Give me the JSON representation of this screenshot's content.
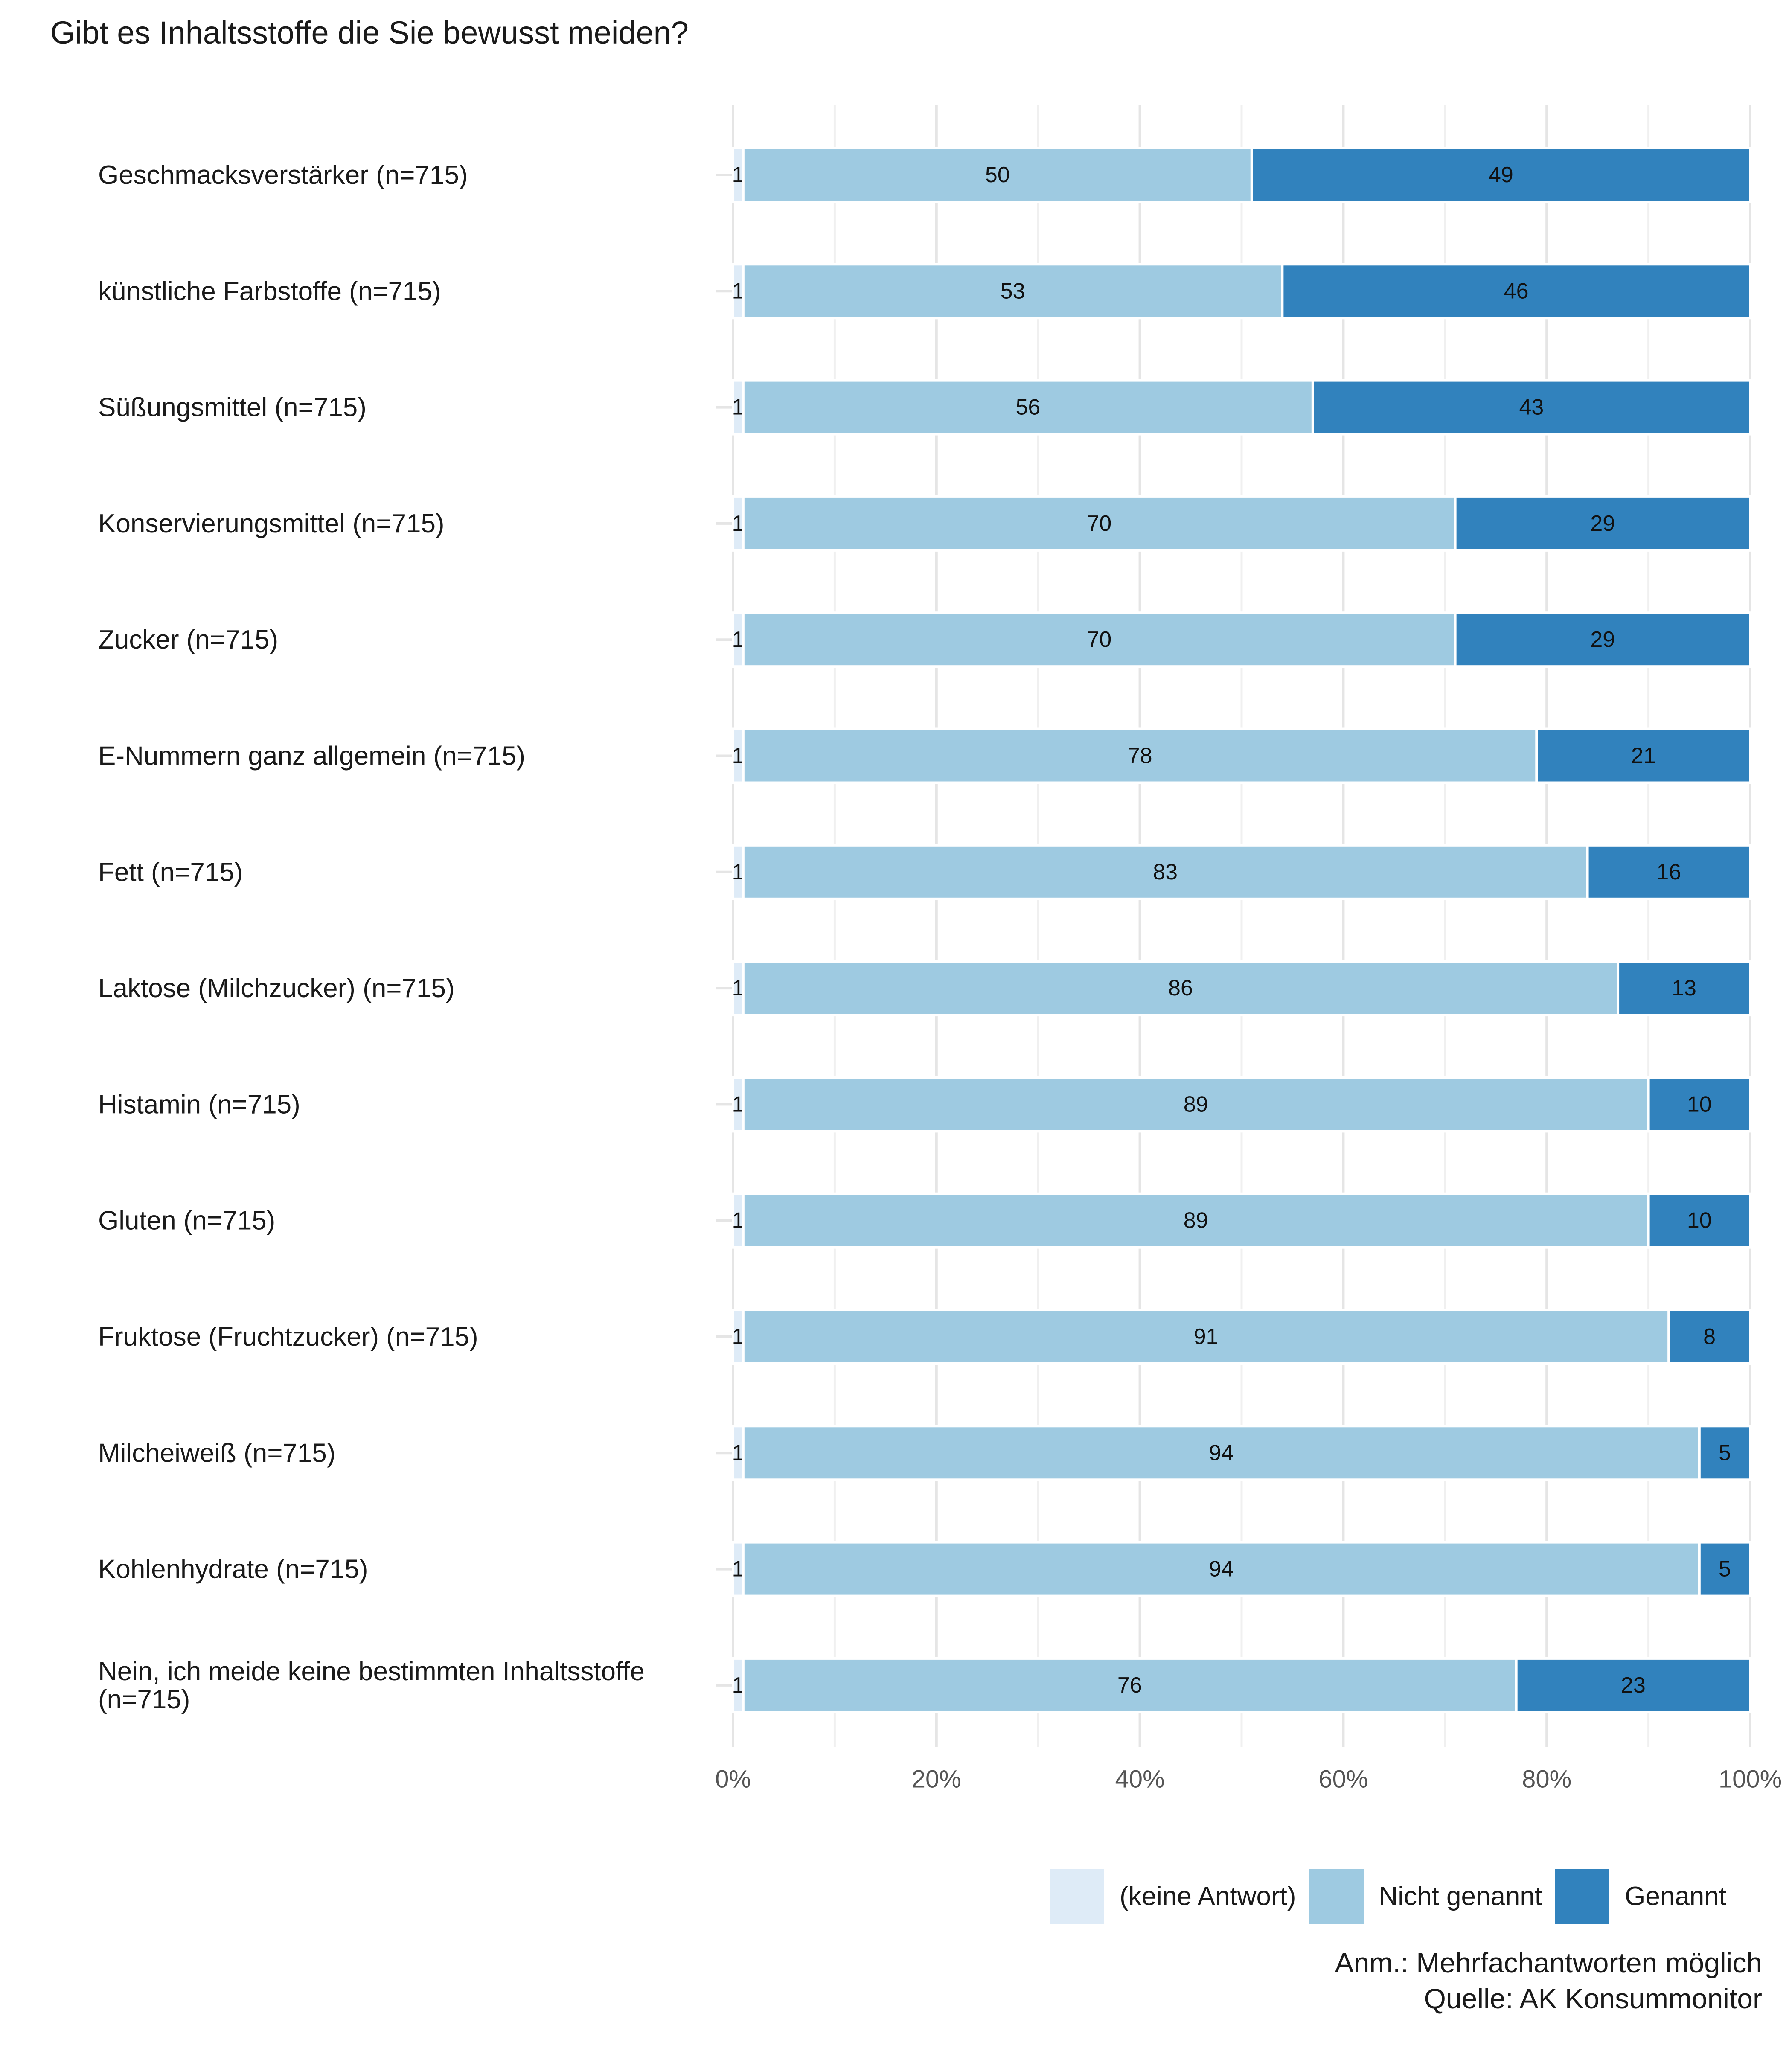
{
  "chart_data": {
    "type": "bar",
    "orientation": "horizontal",
    "stacked": true,
    "percent": true,
    "title": "Gibt es Inhaltsstoffe die Sie bewusst meiden?",
    "categories": [
      "Geschmacksverstärker (n=715)",
      "künstliche Farbstoffe (n=715)",
      "Süßungsmittel (n=715)",
      "Konservierungsmittel (n=715)",
      "Zucker (n=715)",
      "E-Nummern ganz allgemein (n=715)",
      "Fett (n=715)",
      "Laktose (Milchzucker) (n=715)",
      "Histamin (n=715)",
      "Gluten (n=715)",
      "Fruktose (Fruchtzucker) (n=715)",
      "Milcheiweiß (n=715)",
      "Kohlenhydrate (n=715)",
      "Nein, ich meide keine bestimmten Inhaltsstoffe (n=715)"
    ],
    "series": [
      {
        "name": "(keine Antwort)",
        "color": "#deebf7",
        "values": [
          1,
          1,
          1,
          1,
          1,
          1,
          1,
          1,
          1,
          1,
          1,
          1,
          1,
          1
        ]
      },
      {
        "name": "Nicht genannt",
        "color": "#9ecae1",
        "values": [
          50,
          53,
          56,
          70,
          70,
          78,
          83,
          86,
          89,
          89,
          91,
          94,
          94,
          76
        ]
      },
      {
        "name": "Genannt",
        "color": "#3182bd",
        "values": [
          49,
          46,
          43,
          29,
          29,
          21,
          16,
          13,
          10,
          10,
          8,
          5,
          5,
          23
        ]
      }
    ],
    "x_ticks": [
      "0%",
      "20%",
      "40%",
      "60%",
      "80%",
      "100%"
    ],
    "x_tick_values": [
      0,
      20,
      40,
      60,
      80,
      100
    ],
    "xlim": [
      0,
      100
    ],
    "grid": true,
    "legend_position": "bottom-right"
  },
  "legend": {
    "items": [
      {
        "label": "(keine Antwort)",
        "color": "#deebf7"
      },
      {
        "label": "Nicht genannt",
        "color": "#9ecae1"
      },
      {
        "label": "Genannt",
        "color": "#3182bd"
      }
    ]
  },
  "caption": {
    "note": "Anm.: Mehrfachantworten möglich",
    "source": "Quelle: AK Konsummonitor"
  }
}
